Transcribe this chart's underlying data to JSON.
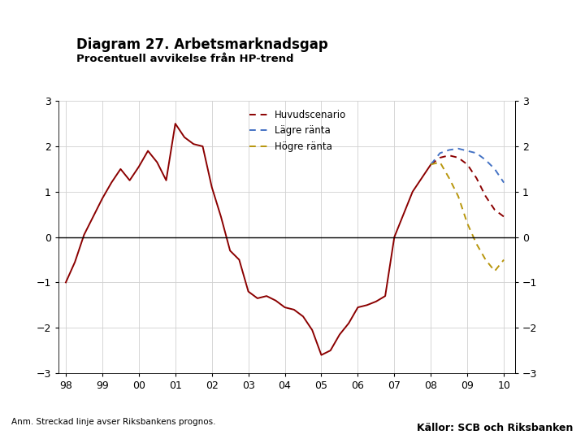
{
  "title": "Diagram 27. Arbetsmarknadsgap",
  "subtitle": "Procentuell avvikelse från HP-trend",
  "footnote": "Anm. Streckad linje avser Riksbankens prognos.",
  "source": "Källor: SCB och Riksbanken",
  "background_color": "#ffffff",
  "plot_bg_color": "#ffffff",
  "grid_color": "#d0d0d0",
  "bottom_bar_color": "#1a3a6b",
  "ylim": [
    -3,
    3
  ],
  "yticks": [
    -3,
    -2,
    -1,
    0,
    1,
    2,
    3
  ],
  "xtick_labels": [
    "98",
    "99",
    "00",
    "01",
    "02",
    "03",
    "04",
    "05",
    "06",
    "07",
    "08",
    "09",
    "10"
  ],
  "solid_color": "#8b0000",
  "huvudscenario_color": "#8b0000",
  "lagre_color": "#4472c4",
  "hogre_color": "#b8960c",
  "solid_x": [
    1998.0,
    1998.25,
    1998.5,
    1998.75,
    1999.0,
    1999.25,
    1999.5,
    1999.75,
    2000.0,
    2000.25,
    2000.5,
    2000.75,
    2001.0,
    2001.25,
    2001.5,
    2001.75,
    2002.0,
    2002.25,
    2002.5,
    2002.75,
    2003.0,
    2003.25,
    2003.5,
    2003.75,
    2004.0,
    2004.25,
    2004.5,
    2004.75,
    2005.0,
    2005.25,
    2005.5,
    2005.75,
    2006.0,
    2006.25,
    2006.5,
    2006.75,
    2007.0,
    2007.25,
    2007.5,
    2007.75,
    2008.0
  ],
  "solid_y": [
    -1.0,
    -0.55,
    0.05,
    0.45,
    0.85,
    1.2,
    1.5,
    1.25,
    1.55,
    1.9,
    1.65,
    1.25,
    2.5,
    2.2,
    2.05,
    2.0,
    1.1,
    0.45,
    -0.3,
    -0.5,
    -1.2,
    -1.35,
    -1.3,
    -1.4,
    -1.55,
    -1.6,
    -1.75,
    -2.05,
    -2.6,
    -2.5,
    -2.15,
    -1.9,
    -1.55,
    -1.5,
    -1.42,
    -1.3,
    0.0,
    0.5,
    1.0,
    1.3,
    1.6
  ],
  "huvud_x": [
    2008.0,
    2008.25,
    2008.5,
    2008.75,
    2009.0,
    2009.25,
    2009.5,
    2009.75,
    2010.0
  ],
  "huvud_y": [
    1.6,
    1.75,
    1.8,
    1.75,
    1.6,
    1.3,
    0.9,
    0.6,
    0.45
  ],
  "lagre_x": [
    2008.0,
    2008.25,
    2008.5,
    2008.75,
    2009.0,
    2009.25,
    2009.5,
    2009.75,
    2010.0
  ],
  "lagre_y": [
    1.6,
    1.85,
    1.92,
    1.95,
    1.9,
    1.85,
    1.7,
    1.5,
    1.2
  ],
  "hogre_x": [
    2008.0,
    2008.25,
    2008.5,
    2008.75,
    2009.0,
    2009.25,
    2009.5,
    2009.75,
    2010.0
  ],
  "hogre_y": [
    1.6,
    1.65,
    1.3,
    0.9,
    0.3,
    -0.15,
    -0.5,
    -0.75,
    -0.5
  ]
}
